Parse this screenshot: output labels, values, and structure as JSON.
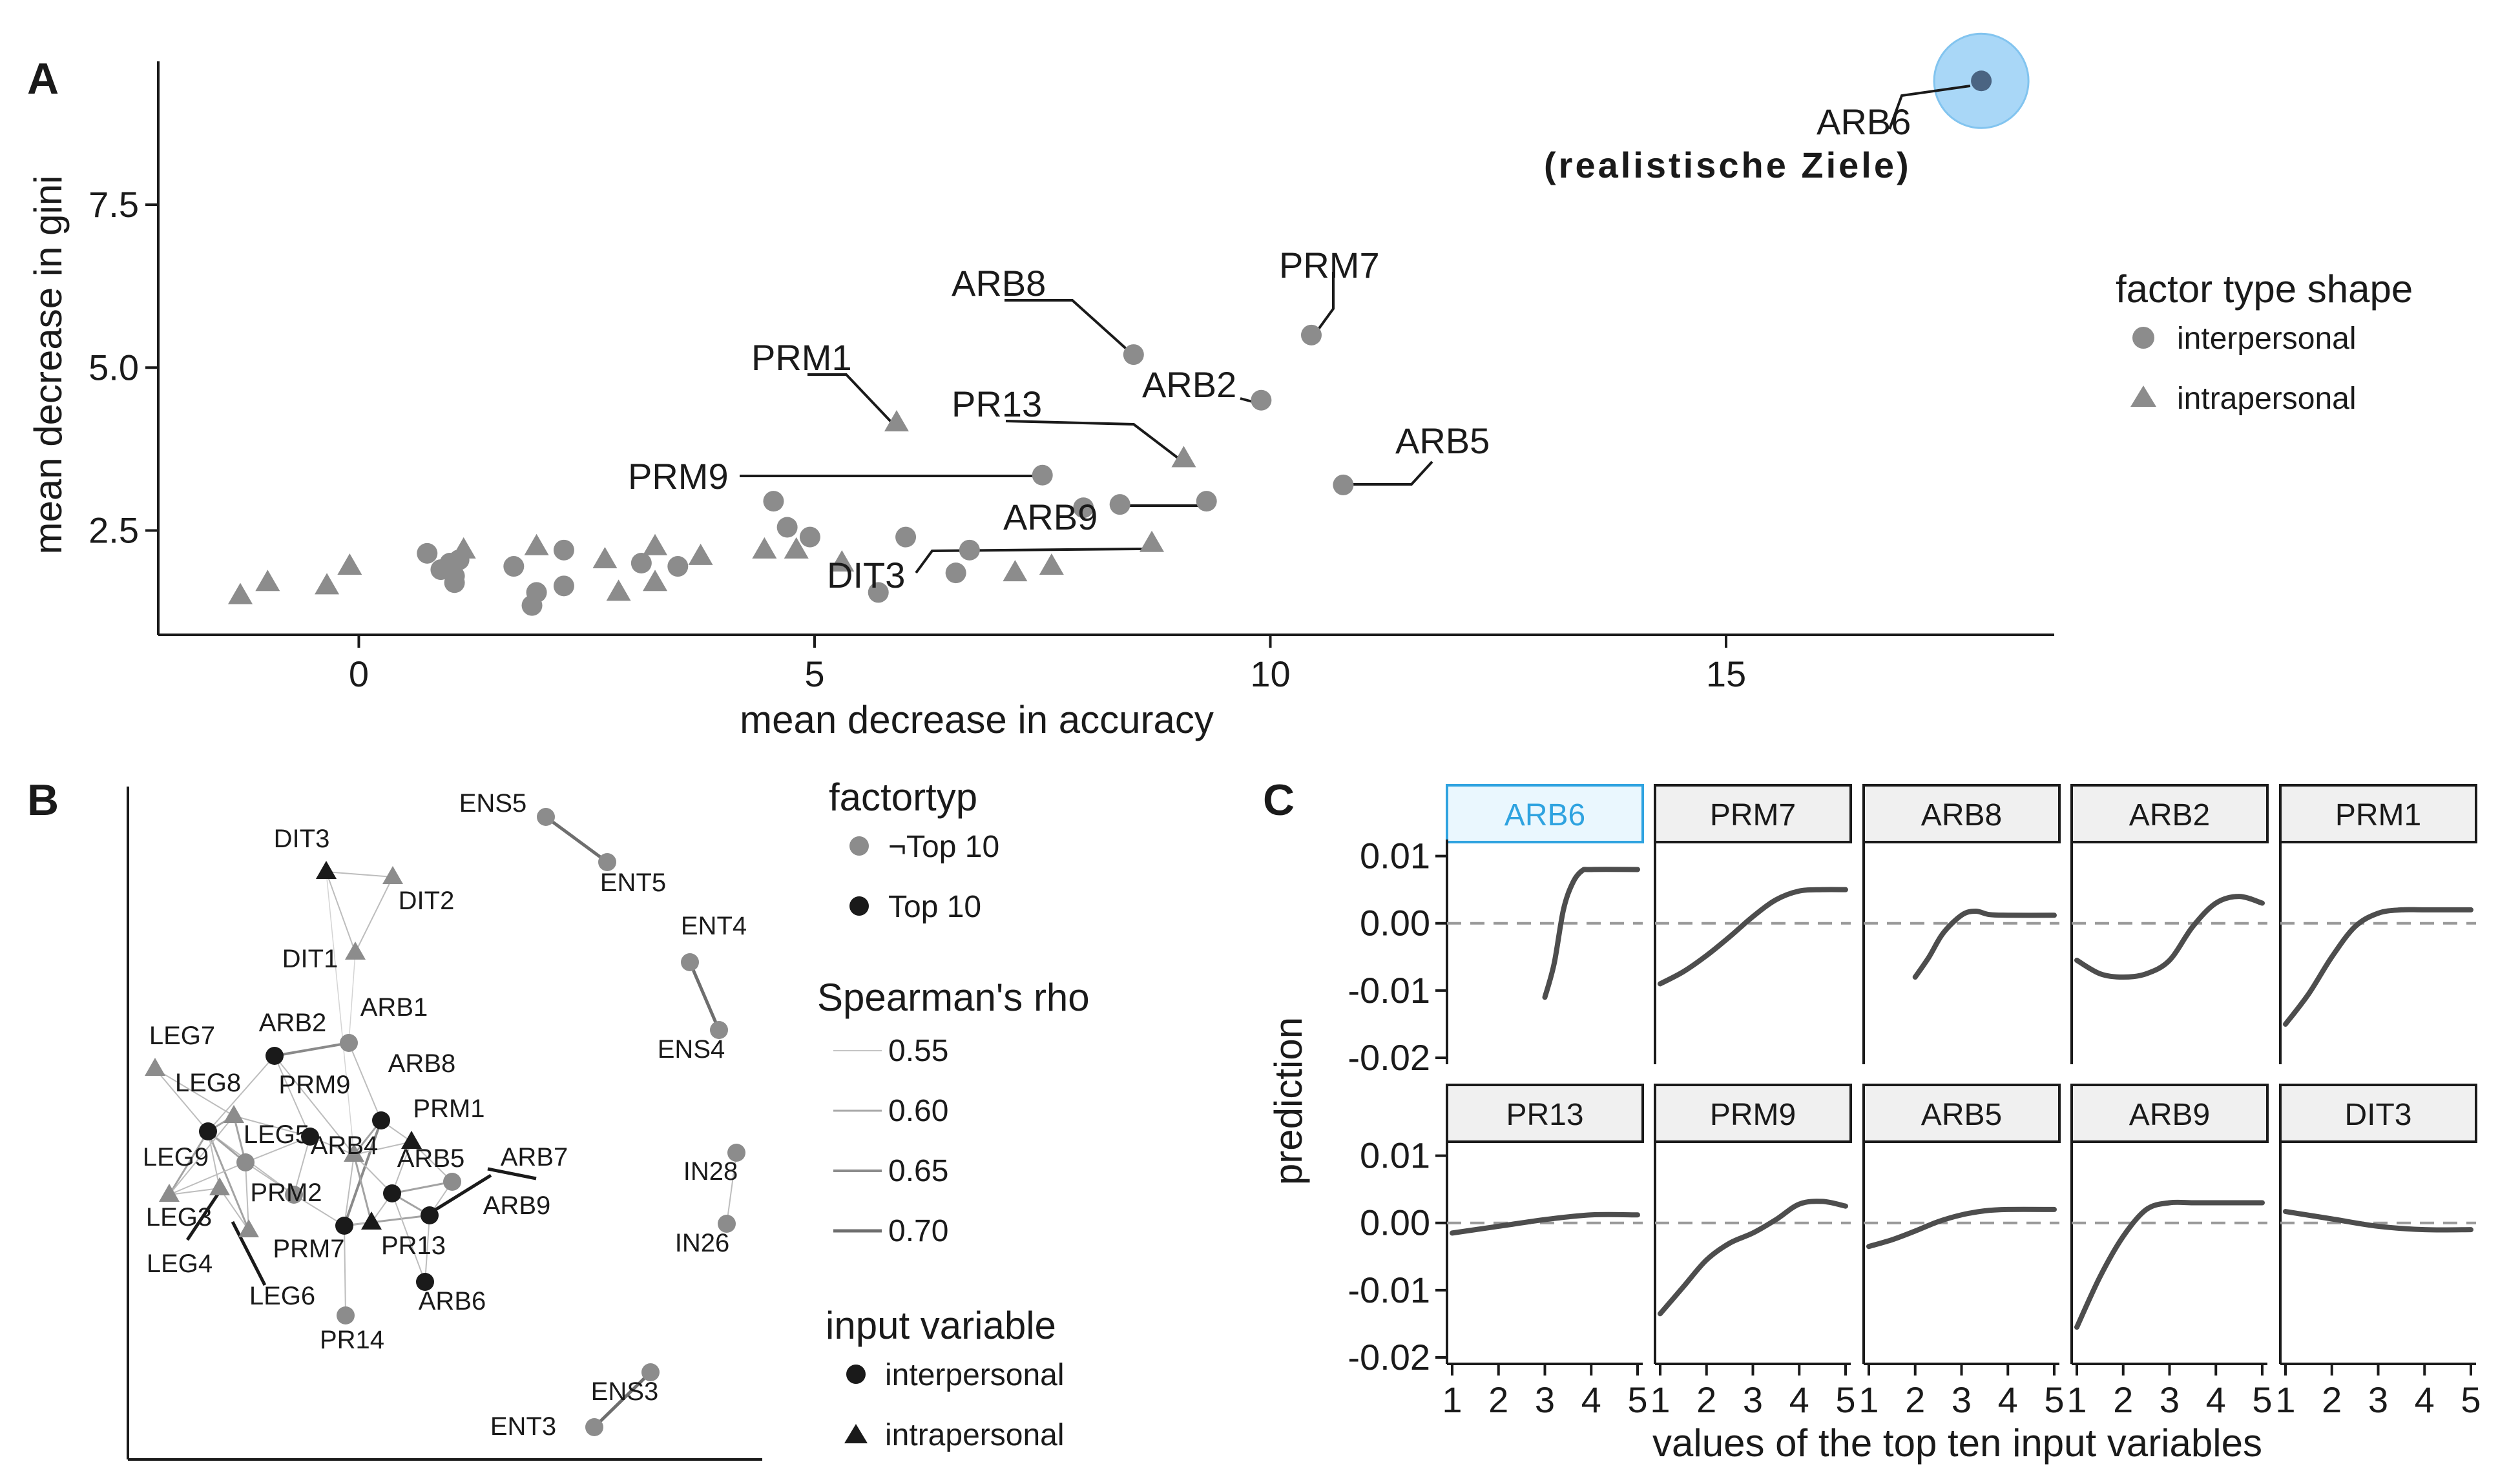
{
  "panels": {
    "a": "A",
    "b": "B",
    "c": "C"
  },
  "colors": {
    "interpersonal": "#8c8c8c",
    "top10": "#1a1a1a",
    "highlight_fill": "#a9d7f7",
    "highlight_stroke": "#82c4ef",
    "highlight_point": "#4a6482",
    "highlight_text": "#9cd1f5",
    "curve": "#4d4d4d"
  },
  "chart_data": [
    {
      "panel": "A",
      "type": "scatter",
      "xlabel": "mean decrease in accuracy",
      "ylabel": "mean decrease in gini",
      "xlim": [
        -2.2,
        18.6
      ],
      "ylim": [
        0.9,
        9.7
      ],
      "xticks": [
        0,
        5,
        10,
        15
      ],
      "yticks": [
        2.5,
        5.0,
        7.5
      ],
      "ytick_labels": [
        "2.5",
        "5.0",
        "7.5"
      ],
      "legend": {
        "title": "factor type shape",
        "items": [
          "interpersonal",
          "intrapersonal"
        ],
        "position": "right"
      },
      "annotation": "(realistische Ziele)",
      "highlight": "ARB6",
      "points": [
        {
          "x": 17.8,
          "y": 9.4,
          "shape": "circle",
          "label": "ARB6"
        },
        {
          "x": 10.45,
          "y": 5.5,
          "shape": "circle",
          "label": "PRM7"
        },
        {
          "x": 8.5,
          "y": 5.2,
          "shape": "circle",
          "label": "ARB8"
        },
        {
          "x": 9.9,
          "y": 4.5,
          "shape": "circle",
          "label": "ARB2"
        },
        {
          "x": 5.9,
          "y": 4.15,
          "shape": "triangle",
          "label": "PRM1"
        },
        {
          "x": 9.05,
          "y": 3.6,
          "shape": "triangle",
          "label": "PR13"
        },
        {
          "x": 7.5,
          "y": 3.35,
          "shape": "circle",
          "label": "PRM9"
        },
        {
          "x": 10.8,
          "y": 3.2,
          "shape": "circle",
          "label": "ARB5"
        },
        {
          "x": 9.3,
          "y": 2.95,
          "shape": "circle",
          "label": "ARB9"
        },
        {
          "x": 5.7,
          "y": 1.55,
          "shape": "circle",
          "label": "DIT3"
        },
        {
          "x": 8.7,
          "y": 2.3,
          "shape": "triangle",
          "label": ""
        },
        {
          "x": 8.35,
          "y": 2.9,
          "shape": "circle",
          "label": ""
        },
        {
          "x": 7.95,
          "y": 2.85,
          "shape": "circle",
          "label": ""
        },
        {
          "x": 7.6,
          "y": 1.95,
          "shape": "triangle",
          "label": ""
        },
        {
          "x": 7.2,
          "y": 1.85,
          "shape": "triangle",
          "label": ""
        },
        {
          "x": 6.7,
          "y": 2.2,
          "shape": "circle",
          "label": ""
        },
        {
          "x": 6.55,
          "y": 1.85,
          "shape": "circle",
          "label": ""
        },
        {
          "x": 6.0,
          "y": 2.4,
          "shape": "circle",
          "label": ""
        },
        {
          "x": 5.3,
          "y": 2.0,
          "shape": "triangle",
          "label": ""
        },
        {
          "x": 4.95,
          "y": 2.4,
          "shape": "circle",
          "label": ""
        },
        {
          "x": 4.7,
          "y": 2.55,
          "shape": "circle",
          "label": ""
        },
        {
          "x": 4.55,
          "y": 2.95,
          "shape": "circle",
          "label": ""
        },
        {
          "x": 4.45,
          "y": 2.2,
          "shape": "triangle",
          "label": ""
        },
        {
          "x": 4.8,
          "y": 2.2,
          "shape": "triangle",
          "label": ""
        },
        {
          "x": 3.75,
          "y": 2.1,
          "shape": "triangle",
          "label": ""
        },
        {
          "x": 3.5,
          "y": 1.95,
          "shape": "circle",
          "label": ""
        },
        {
          "x": 3.25,
          "y": 2.25,
          "shape": "triangle",
          "label": ""
        },
        {
          "x": 3.25,
          "y": 1.7,
          "shape": "triangle",
          "label": ""
        },
        {
          "x": 3.1,
          "y": 2.0,
          "shape": "circle",
          "label": ""
        },
        {
          "x": 2.85,
          "y": 1.55,
          "shape": "triangle",
          "label": ""
        },
        {
          "x": 2.7,
          "y": 2.05,
          "shape": "triangle",
          "label": ""
        },
        {
          "x": 2.25,
          "y": 2.2,
          "shape": "circle",
          "label": ""
        },
        {
          "x": 2.25,
          "y": 1.65,
          "shape": "circle",
          "label": ""
        },
        {
          "x": 1.95,
          "y": 2.25,
          "shape": "triangle",
          "label": ""
        },
        {
          "x": 1.95,
          "y": 1.55,
          "shape": "circle",
          "label": ""
        },
        {
          "x": 1.9,
          "y": 1.35,
          "shape": "circle",
          "label": ""
        },
        {
          "x": 1.7,
          "y": 1.95,
          "shape": "circle",
          "label": ""
        },
        {
          "x": 1.15,
          "y": 2.2,
          "shape": "triangle",
          "label": ""
        },
        {
          "x": 1.1,
          "y": 2.05,
          "shape": "circle",
          "label": ""
        },
        {
          "x": 1.05,
          "y": 1.8,
          "shape": "circle",
          "label": ""
        },
        {
          "x": 1.05,
          "y": 1.7,
          "shape": "circle",
          "label": ""
        },
        {
          "x": 1.0,
          "y": 2.0,
          "shape": "circle",
          "label": ""
        },
        {
          "x": 0.9,
          "y": 1.9,
          "shape": "circle",
          "label": ""
        },
        {
          "x": 0.75,
          "y": 2.15,
          "shape": "circle",
          "label": ""
        },
        {
          "x": -0.1,
          "y": 1.95,
          "shape": "triangle",
          "label": ""
        },
        {
          "x": -0.35,
          "y": 1.65,
          "shape": "triangle",
          "label": ""
        },
        {
          "x": -1.0,
          "y": 1.7,
          "shape": "triangle",
          "label": ""
        },
        {
          "x": -1.3,
          "y": 1.5,
          "shape": "triangle",
          "label": ""
        }
      ]
    },
    {
      "panel": "B",
      "type": "network",
      "legend_factortyp": {
        "title": "factortyp",
        "items": [
          "¬Top 10",
          "Top 10"
        ]
      },
      "legend_rho": {
        "title": "Spearman's rho",
        "items": [
          "0.55",
          "0.60",
          "0.65",
          "0.70"
        ]
      },
      "legend_input": {
        "title": "input variable",
        "items": [
          "interpersonal",
          "intrapersonal"
        ]
      },
      "nodes": [
        {
          "id": "DIT3",
          "shape": "triangle",
          "top10": true
        },
        {
          "id": "DIT2",
          "shape": "triangle",
          "top10": false
        },
        {
          "id": "DIT1",
          "shape": "triangle",
          "top10": false
        },
        {
          "id": "ENS5",
          "shape": "circle",
          "top10": false
        },
        {
          "id": "ENT5",
          "shape": "circle",
          "top10": false
        },
        {
          "id": "ENT4",
          "shape": "circle",
          "top10": false
        },
        {
          "id": "ENS4",
          "shape": "circle",
          "top10": false
        },
        {
          "id": "IN28",
          "shape": "circle",
          "top10": false
        },
        {
          "id": "IN26",
          "shape": "circle",
          "top10": false
        },
        {
          "id": "ENS3",
          "shape": "circle",
          "top10": false
        },
        {
          "id": "ENT3",
          "shape": "circle",
          "top10": false
        },
        {
          "id": "ARB2",
          "shape": "circle",
          "top10": true
        },
        {
          "id": "ARB1",
          "shape": "circle",
          "top10": false
        },
        {
          "id": "ARB8",
          "shape": "circle",
          "top10": true
        },
        {
          "id": "PRM1",
          "shape": "triangle",
          "top10": true
        },
        {
          "id": "PRM9",
          "shape": "circle",
          "top10": true
        },
        {
          "id": "ARB4",
          "shape": "triangle",
          "top10": false
        },
        {
          "id": "ARB5",
          "shape": "circle",
          "top10": true
        },
        {
          "id": "ARB7",
          "shape": "circle",
          "top10": false
        },
        {
          "id": "ARB9",
          "shape": "circle",
          "top10": true
        },
        {
          "id": "PR13",
          "shape": "triangle",
          "top10": true
        },
        {
          "id": "ARB6",
          "shape": "circle",
          "top10": true
        },
        {
          "id": "PRM7",
          "shape": "circle",
          "top10": true
        },
        {
          "id": "PRM2",
          "shape": "circle",
          "top10": false
        },
        {
          "id": "PR14",
          "shape": "circle",
          "top10": false
        },
        {
          "id": "LEG7",
          "shape": "triangle",
          "top10": false
        },
        {
          "id": "LEG8",
          "shape": "triangle",
          "top10": false
        },
        {
          "id": "LEG5",
          "shape": "circle",
          "top10": false
        },
        {
          "id": "LEG9",
          "shape": "circle",
          "top10": true
        },
        {
          "id": "LEG3",
          "shape": "triangle",
          "top10": false
        },
        {
          "id": "LEG4",
          "shape": "triangle",
          "top10": false
        },
        {
          "id": "LEG6",
          "shape": "triangle",
          "top10": false
        }
      ]
    },
    {
      "panel": "C",
      "type": "line",
      "xlabel": "values of the top ten input variables",
      "ylabel": "prediction",
      "x_ticks": [
        "1",
        "2",
        "3",
        "4",
        "5"
      ],
      "y_ticks": [
        "0.01",
        "0.00",
        "-0.01",
        "-0.02"
      ],
      "ylim": [
        -0.02,
        0.0115
      ],
      "reference_line": 0,
      "facets": [
        {
          "name": "ARB6",
          "highlight": true,
          "x": [
            3.0,
            3.2,
            3.4,
            3.6,
            3.8,
            4.0,
            5.0
          ],
          "y": [
            -0.011,
            -0.006,
            0.002,
            0.006,
            0.0078,
            0.008,
            0.008
          ]
        },
        {
          "name": "PRM7",
          "x": [
            1,
            1.5,
            2,
            2.5,
            3,
            3.5,
            4,
            4.5,
            5
          ],
          "y": [
            -0.009,
            -0.0072,
            -0.0048,
            -0.002,
            0.001,
            0.0035,
            0.0048,
            0.005,
            0.005
          ]
        },
        {
          "name": "ARB8",
          "x": [
            2.0,
            2.3,
            2.6,
            3.0,
            3.3,
            3.6,
            4.0,
            5.0
          ],
          "y": [
            -0.008,
            -0.005,
            -0.0015,
            0.0012,
            0.0018,
            0.0013,
            0.0012,
            0.0012
          ]
        },
        {
          "name": "ARB2",
          "x": [
            1.0,
            1.5,
            2.0,
            2.5,
            3.0,
            3.5,
            4.0,
            4.5,
            5.0
          ],
          "y": [
            -0.0055,
            -0.0075,
            -0.008,
            -0.0075,
            -0.0055,
            -0.0005,
            0.003,
            0.004,
            0.003
          ]
        },
        {
          "name": "PRM1",
          "x": [
            1.0,
            1.5,
            2.0,
            2.5,
            3.0,
            3.5,
            4.0,
            5.0
          ],
          "y": [
            -0.015,
            -0.0105,
            -0.005,
            -0.0005,
            0.0015,
            0.002,
            0.002,
            0.002
          ]
        },
        {
          "name": "PR13",
          "x": [
            1,
            2,
            3,
            4,
            5
          ],
          "y": [
            -0.0015,
            -0.0005,
            0.0005,
            0.0012,
            0.0012
          ]
        },
        {
          "name": "PRM9",
          "x": [
            1.0,
            1.5,
            2.0,
            2.5,
            3.0,
            3.5,
            4.0,
            4.5,
            5.0
          ],
          "y": [
            -0.0135,
            -0.0095,
            -0.0055,
            -0.003,
            -0.0015,
            0.0005,
            0.0028,
            0.0032,
            0.0025
          ]
        },
        {
          "name": "ARB5",
          "x": [
            1.0,
            1.5,
            2.0,
            2.5,
            3.0,
            3.5,
            4.0,
            5.0
          ],
          "y": [
            -0.0035,
            -0.0025,
            -0.0012,
            0.0002,
            0.0012,
            0.0018,
            0.002,
            0.002
          ]
        },
        {
          "name": "ARB9",
          "x": [
            1.0,
            1.5,
            2.0,
            2.5,
            3.0,
            3.5,
            4.0,
            5.0
          ],
          "y": [
            -0.0155,
            -0.008,
            -0.002,
            0.002,
            0.003,
            0.003,
            0.003,
            0.003
          ]
        },
        {
          "name": "DIT3",
          "x": [
            1,
            2,
            3,
            4,
            5
          ],
          "y": [
            0.0017,
            0.0006,
            -0.0005,
            -0.001,
            -0.001
          ]
        }
      ]
    }
  ]
}
